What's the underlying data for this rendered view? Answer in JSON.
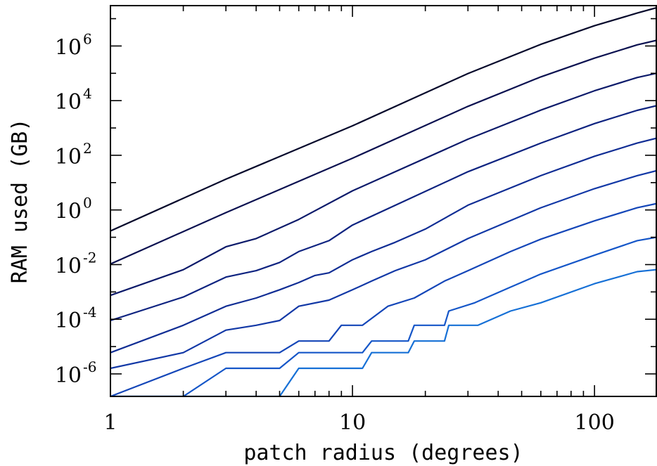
{
  "chart_data": {
    "type": "line",
    "xlabel": "patch radius (degrees)",
    "ylabel": "RAM used (GB)",
    "x_scale": "log",
    "y_scale": "log",
    "xlim": [
      1,
      180
    ],
    "ylim": [
      1.5e-07,
      30000000.0
    ],
    "x_ticks": [
      {
        "value": 1,
        "label": "1"
      },
      {
        "value": 10,
        "label": "10"
      },
      {
        "value": 100,
        "label": "100"
      }
    ],
    "y_ticks": [
      {
        "value": 1e-06,
        "base": "10",
        "exp": "-6"
      },
      {
        "value": 0.0001,
        "base": "10",
        "exp": "-4"
      },
      {
        "value": 0.01,
        "base": "10",
        "exp": "-2"
      },
      {
        "value": 1,
        "base": "10",
        "exp": "0"
      },
      {
        "value": 100,
        "base": "10",
        "exp": "2"
      },
      {
        "value": 10000,
        "base": "10",
        "exp": "4"
      },
      {
        "value": 1000000,
        "base": "10",
        "exp": "6"
      }
    ],
    "grid": false,
    "legend": "none",
    "series": [
      {
        "color": "#06092b",
        "x": [
          1,
          3,
          10,
          30,
          60,
          100,
          150,
          180
        ],
        "y": [
          0.17,
          13.4,
          1200,
          98000.0,
          1150000.0,
          5500000.0,
          16000000.0,
          25000000.0
        ]
      },
      {
        "color": "#0b1150",
        "x": [
          1,
          3,
          10,
          30,
          60,
          100,
          150,
          180
        ],
        "y": [
          0.0105,
          0.8,
          78,
          6200,
          74000.0,
          360000.0,
          1100000.0,
          1600000.0
        ]
      },
      {
        "color": "#0c1a6a",
        "x": [
          1,
          2,
          3,
          4,
          6,
          10,
          30,
          60,
          100,
          150,
          180
        ],
        "y": [
          0.00075,
          0.0065,
          0.045,
          0.09,
          0.45,
          5,
          390,
          4500,
          23000.0,
          70000.0,
          100000.0
        ]
      },
      {
        "color": "#0e2380",
        "x": [
          1,
          2,
          3,
          4,
          5,
          6,
          8,
          10,
          30,
          60,
          100,
          150,
          180
        ],
        "y": [
          9e-05,
          0.00065,
          0.0035,
          0.006,
          0.012,
          0.03,
          0.075,
          0.28,
          25,
          280,
          1450,
          4400,
          6500
        ]
      },
      {
        "color": "#102d94",
        "x": [
          1,
          2,
          3,
          4,
          5,
          6,
          7,
          8,
          10,
          12,
          15,
          20,
          30,
          60,
          100,
          150,
          180
        ],
        "y": [
          6e-06,
          6e-05,
          0.0003,
          0.0006,
          0.0012,
          0.0022,
          0.004,
          0.005,
          0.015,
          0.03,
          0.065,
          0.2,
          1.5,
          18,
          92,
          280,
          420
        ]
      },
      {
        "color": "#1238a6",
        "x": [
          1,
          2,
          3,
          4,
          5,
          6,
          8,
          10,
          12,
          15,
          20,
          30,
          60,
          100,
          150,
          180
        ],
        "y": [
          1.6e-06,
          6e-06,
          4e-05,
          6e-05,
          9e-05,
          0.0003,
          0.0005,
          0.0012,
          0.0025,
          0.006,
          0.015,
          0.09,
          1.2,
          6,
          18,
          27
        ]
      },
      {
        "color": "#1446b8",
        "x": [
          1,
          2,
          3,
          4,
          5,
          6,
          8,
          9,
          11,
          14,
          18,
          24,
          30,
          45,
          60,
          100,
          150,
          180
        ],
        "y": [
          1.5e-07,
          1.6e-06,
          6e-06,
          6e-06,
          6e-06,
          1.6e-05,
          1.6e-05,
          6e-05,
          6e-05,
          0.0003,
          0.0006,
          0.0025,
          0.006,
          0.03,
          0.085,
          0.4,
          1.2,
          1.7
        ]
      },
      {
        "color": "#1556c8",
        "x": [
          1,
          2,
          3,
          5,
          6,
          11,
          12,
          17,
          18,
          24,
          25,
          32,
          45,
          60,
          100,
          150,
          180
        ],
        "y": [
          1.5e-07,
          1.5e-07,
          1.6e-06,
          1.6e-06,
          6e-06,
          6e-06,
          1.6e-05,
          1.6e-05,
          6e-05,
          6e-05,
          0.0002,
          0.0004,
          0.0015,
          0.0045,
          0.022,
          0.075,
          0.1
        ]
      },
      {
        "color": "#1670d6",
        "x": [
          1,
          2,
          3,
          5,
          6,
          11,
          12,
          17,
          18,
          24,
          25,
          33,
          45,
          60,
          100,
          150,
          180
        ],
        "y": [
          1.5e-07,
          1.5e-07,
          1.5e-07,
          1.5e-07,
          1.6e-06,
          1.6e-06,
          6e-06,
          6e-06,
          1.6e-05,
          1.6e-05,
          6e-05,
          6e-05,
          0.0002,
          0.0004,
          0.002,
          0.0055,
          0.0065
        ]
      }
    ]
  }
}
